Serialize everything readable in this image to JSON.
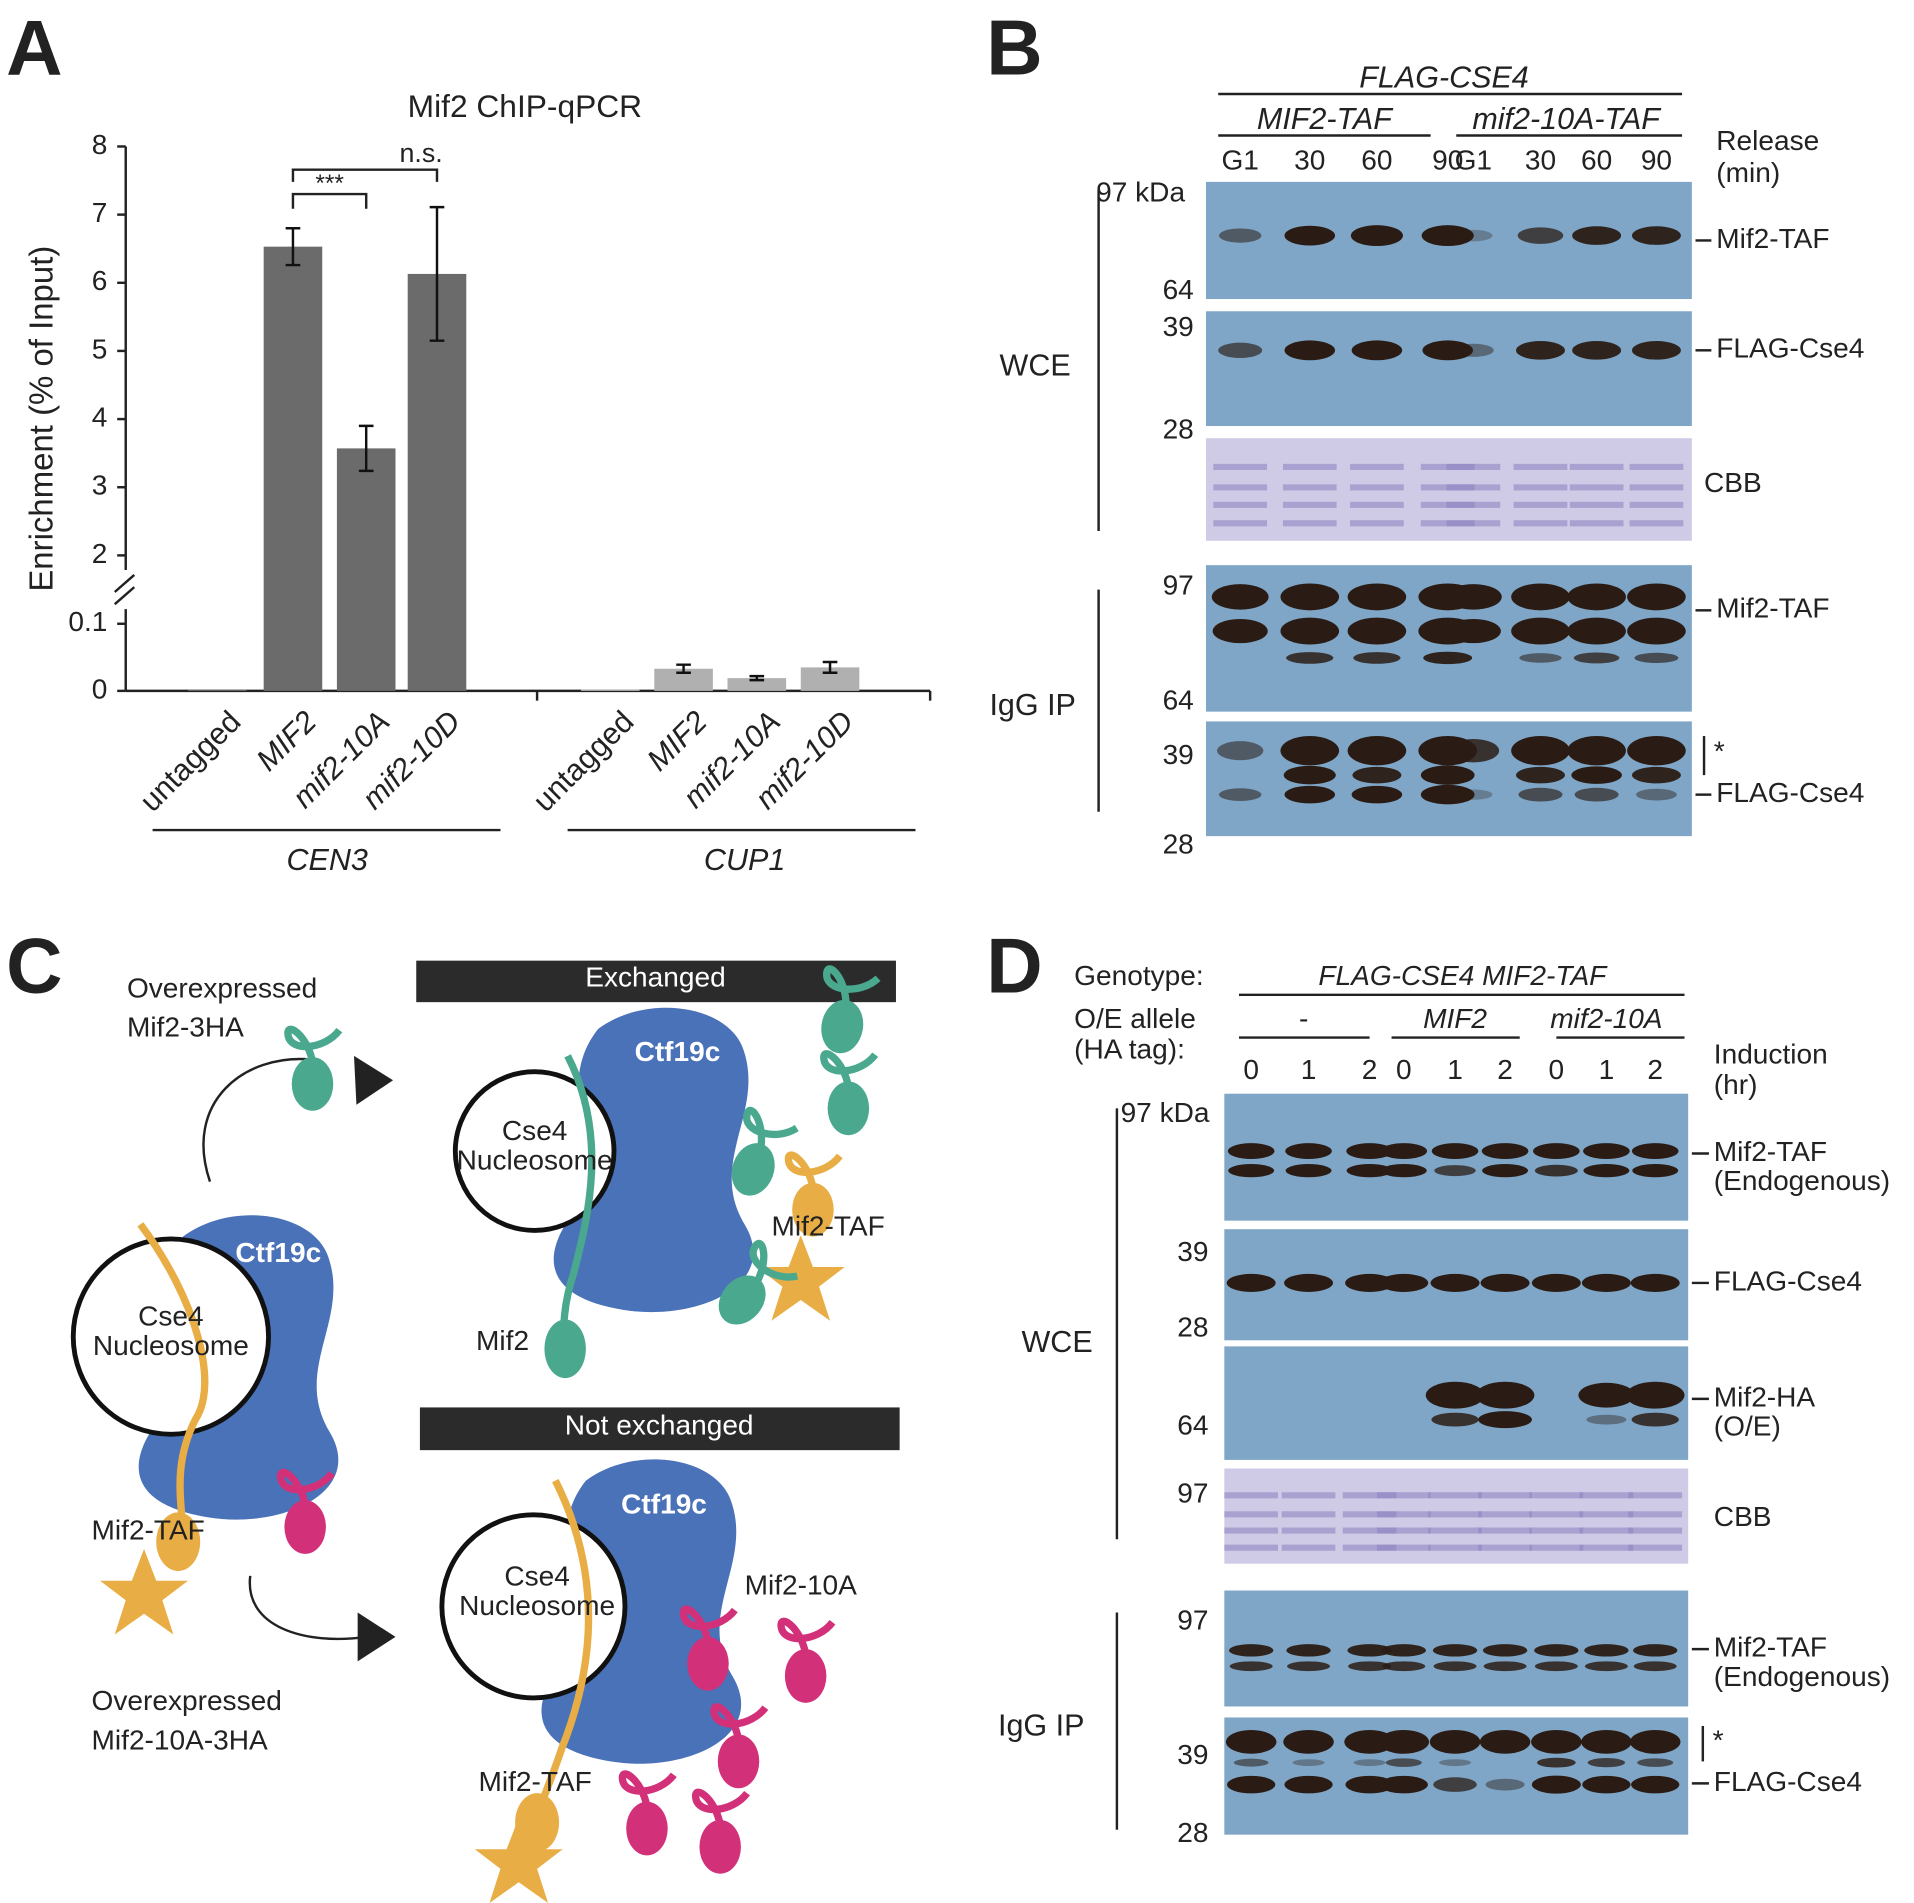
{
  "panel_labels": [
    "A",
    "B",
    "C",
    "D"
  ],
  "chart_data": {
    "type": "bar",
    "title": "Mif2 ChIP-qPCR",
    "y_label": "Enrichment (% of Input)",
    "categories": [
      "untagged",
      "MIF2",
      "mif2-10A",
      "mif2-10D",
      "untagged",
      "MIF2",
      "mif2-10A",
      "mif2-10D"
    ],
    "series": [
      {
        "name": "CEN3",
        "color": "#6b6b6b",
        "values": [
          0.002,
          6.53,
          3.57,
          6.13,
          null,
          null,
          null,
          null
        ],
        "errors": [
          null,
          0.27,
          0.33,
          0.98,
          null,
          null,
          null,
          null
        ]
      },
      {
        "name": "CUP1",
        "color": "#b0b0b0",
        "values": [
          null,
          null,
          null,
          null,
          0.002,
          0.033,
          0.019,
          0.035
        ],
        "errors": [
          null,
          null,
          null,
          null,
          null,
          0.006,
          0.003,
          0.008
        ]
      }
    ],
    "ylim": [
      0,
      8
    ],
    "yticks": [
      0,
      0.1,
      2,
      3,
      4,
      5,
      6,
      7,
      8
    ],
    "y_break": [
      0.1,
      2
    ],
    "annotations": [
      "***",
      "n.s."
    ]
  },
  "panel_b": {
    "header": "FLAG-CSE4",
    "strains": [
      "MIF2-TAF",
      "mif2-10A-TAF"
    ],
    "lanes": [
      "G1",
      "30",
      "60",
      "90",
      "G1",
      "30",
      "60",
      "90"
    ],
    "lane_title": [
      "Release",
      "(min)"
    ],
    "fractions": [
      "WCE",
      "IgG IP"
    ],
    "markers": [
      "97 kDa",
      "64",
      "39",
      "28",
      "97",
      "64",
      "39",
      "28"
    ],
    "bands": [
      "Mif2-TAF",
      "FLAG-Cse4",
      "CBB",
      "Mif2-TAF",
      "*",
      "FLAG-Cse4"
    ]
  },
  "panel_c": {
    "boxes": [
      "Exchanged",
      "Not exchanged"
    ],
    "complex": "Ctf19c",
    "nucleosome": [
      "Cse4",
      "Nucleosome"
    ],
    "proteins": [
      "Mif2",
      "Mif2-TAF",
      "Mif2-10A"
    ],
    "overexpressed": [
      [
        "Overexpressed",
        "Mif2-3HA"
      ],
      [
        "Overexpressed",
        "Mif2-10A-3HA"
      ]
    ]
  },
  "panel_d": {
    "genotype_label": "Genotype:",
    "genotype": "FLAG-CSE4 MIF2-TAF",
    "allele_label": [
      "O/E allele",
      "(HA tag):"
    ],
    "alleles": [
      "-",
      "MIF2",
      "mif2-10A"
    ],
    "lanes": [
      "0",
      "1",
      "2",
      "0",
      "1",
      "2",
      "0",
      "1",
      "2"
    ],
    "lane_title": [
      "Induction",
      "(hr)"
    ],
    "fractions": [
      "WCE",
      "IgG IP"
    ],
    "markers": [
      "97 kDa",
      "39",
      "28",
      "64",
      "97",
      "97",
      "39",
      "28"
    ],
    "bands": [
      "Mif2-TAF",
      "(Endogenous)",
      "FLAG-Cse4",
      "Mif2-HA",
      "(O/E)",
      "CBB",
      "Mif2-TAF",
      "(Endogenous)",
      "*",
      "FLAG-Cse4"
    ]
  }
}
